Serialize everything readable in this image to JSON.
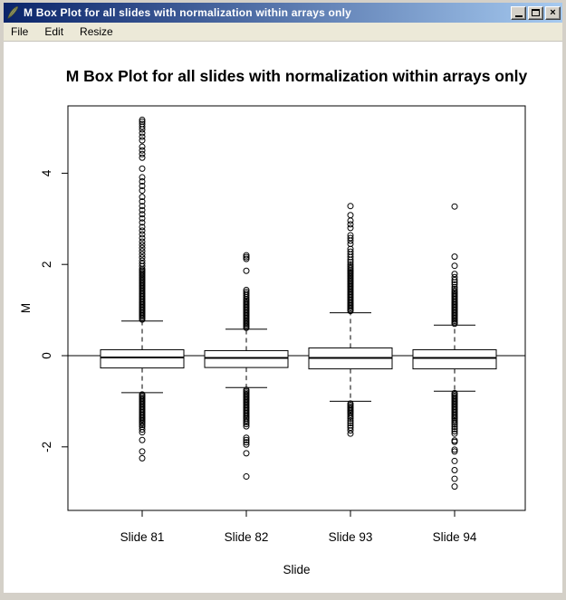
{
  "window": {
    "title": "M Box Plot for all slides with normalization within arrays only",
    "icon": "feather-icon",
    "controls": {
      "close_glyph": "×"
    },
    "control_icons": [
      "minimize-icon",
      "maximize-icon",
      "close-icon"
    ]
  },
  "menu": {
    "items": [
      "File",
      "Edit",
      "Resize"
    ]
  },
  "colors": {
    "titlebar_left": "#0a246a",
    "titlebar_right": "#a6caf0",
    "chrome": "#d4d0c8",
    "menu_bg": "#ece9d8",
    "plot_bg": "#ffffff",
    "ink": "#000000"
  },
  "chart_data": {
    "type": "boxplot",
    "title": "M Box Plot for all slides with normalization within arrays only",
    "xlabel": "Slide",
    "ylabel": "M",
    "ylim": [
      -3.4,
      5.5
    ],
    "yticks": [
      -2,
      0,
      2,
      4
    ],
    "reference_line_y": 0,
    "grid": false,
    "categories": [
      "Slide 81",
      "Slide 82",
      "Slide 93",
      "Slide 94"
    ],
    "boxes": [
      {
        "label": "Slide 81",
        "whisker_low": -0.81,
        "q1": -0.27,
        "median": -0.04,
        "q3": 0.13,
        "whisker_high": 0.76,
        "outliers_high": [
          0.79,
          0.82,
          0.85,
          0.88,
          0.91,
          0.94,
          0.97,
          1.0,
          1.03,
          1.06,
          1.09,
          1.12,
          1.15,
          1.18,
          1.21,
          1.24,
          1.27,
          1.3,
          1.33,
          1.36,
          1.39,
          1.42,
          1.45,
          1.48,
          1.51,
          1.54,
          1.57,
          1.6,
          1.63,
          1.66,
          1.69,
          1.72,
          1.75,
          1.78,
          1.81,
          1.84,
          1.87,
          1.9,
          1.96,
          2.02,
          2.08,
          2.15,
          2.22,
          2.29,
          2.36,
          2.43,
          2.5,
          2.58,
          2.66,
          2.74,
          2.82,
          2.92,
          3.01,
          3.1,
          3.19,
          3.28,
          3.38,
          3.48,
          3.62,
          3.72,
          3.82,
          3.91,
          4.1,
          4.34,
          4.42,
          4.5,
          4.58,
          4.72,
          4.8,
          4.88,
          4.96,
          5.02,
          5.08,
          5.13,
          5.17
        ],
        "outliers_low": [
          -0.85,
          -0.88,
          -0.91,
          -0.94,
          -0.97,
          -1.0,
          -1.03,
          -1.06,
          -1.09,
          -1.12,
          -1.15,
          -1.18,
          -1.21,
          -1.24,
          -1.27,
          -1.3,
          -1.33,
          -1.36,
          -1.39,
          -1.42,
          -1.45,
          -1.48,
          -1.52,
          -1.56,
          -1.62,
          -1.68,
          -1.85,
          -2.1,
          -2.25
        ]
      },
      {
        "label": "Slide 82",
        "whisker_low": -0.7,
        "q1": -0.26,
        "median": -0.05,
        "q3": 0.11,
        "whisker_high": 0.58,
        "outliers_high": [
          0.61,
          0.64,
          0.67,
          0.7,
          0.73,
          0.76,
          0.79,
          0.82,
          0.85,
          0.88,
          0.91,
          0.94,
          0.97,
          1.0,
          1.03,
          1.06,
          1.09,
          1.12,
          1.15,
          1.18,
          1.21,
          1.24,
          1.28,
          1.32,
          1.36,
          1.4,
          1.44,
          1.86,
          2.12,
          2.16,
          2.2
        ],
        "outliers_low": [
          -0.75,
          -0.78,
          -0.81,
          -0.84,
          -0.87,
          -0.9,
          -0.93,
          -0.96,
          -0.99,
          -1.02,
          -1.05,
          -1.08,
          -1.11,
          -1.14,
          -1.17,
          -1.2,
          -1.23,
          -1.26,
          -1.29,
          -1.32,
          -1.35,
          -1.38,
          -1.42,
          -1.46,
          -1.5,
          -1.55,
          -1.8,
          -1.85,
          -1.9,
          -1.95,
          -2.14,
          -2.65
        ]
      },
      {
        "label": "Slide 93",
        "whisker_low": -1.0,
        "q1": -0.29,
        "median": -0.05,
        "q3": 0.17,
        "whisker_high": 0.94,
        "outliers_high": [
          0.98,
          1.01,
          1.04,
          1.07,
          1.1,
          1.13,
          1.16,
          1.19,
          1.22,
          1.25,
          1.28,
          1.31,
          1.34,
          1.37,
          1.4,
          1.43,
          1.46,
          1.49,
          1.52,
          1.55,
          1.58,
          1.61,
          1.64,
          1.67,
          1.7,
          1.73,
          1.76,
          1.79,
          1.82,
          1.85,
          1.88,
          1.92,
          1.96,
          2.0,
          2.05,
          2.1,
          2.16,
          2.22,
          2.28,
          2.34,
          2.45,
          2.52,
          2.58,
          2.64,
          2.8,
          2.88,
          2.96,
          3.08,
          3.28
        ],
        "outliers_low": [
          -1.05,
          -1.08,
          -1.11,
          -1.14,
          -1.17,
          -1.2,
          -1.23,
          -1.26,
          -1.3,
          -1.34,
          -1.38,
          -1.43,
          -1.48,
          -1.53,
          -1.58,
          -1.64,
          -1.71
        ]
      },
      {
        "label": "Slide 94",
        "whisker_low": -0.78,
        "q1": -0.29,
        "median": -0.05,
        "q3": 0.13,
        "whisker_high": 0.67,
        "outliers_high": [
          0.7,
          0.73,
          0.76,
          0.79,
          0.82,
          0.85,
          0.88,
          0.91,
          0.94,
          0.97,
          1.0,
          1.03,
          1.06,
          1.09,
          1.12,
          1.15,
          1.18,
          1.21,
          1.24,
          1.27,
          1.3,
          1.33,
          1.36,
          1.39,
          1.42,
          1.46,
          1.5,
          1.56,
          1.61,
          1.66,
          1.72,
          1.79,
          1.97,
          2.17,
          3.27
        ],
        "outliers_low": [
          -0.82,
          -0.85,
          -0.88,
          -0.91,
          -0.94,
          -0.97,
          -1.0,
          -1.03,
          -1.06,
          -1.09,
          -1.12,
          -1.15,
          -1.18,
          -1.21,
          -1.24,
          -1.27,
          -1.3,
          -1.33,
          -1.36,
          -1.39,
          -1.43,
          -1.47,
          -1.51,
          -1.56,
          -1.61,
          -1.66,
          -1.71,
          -1.86,
          -1.89,
          -2.06,
          -2.1,
          -2.31,
          -2.51,
          -2.7,
          -2.87
        ]
      }
    ]
  }
}
